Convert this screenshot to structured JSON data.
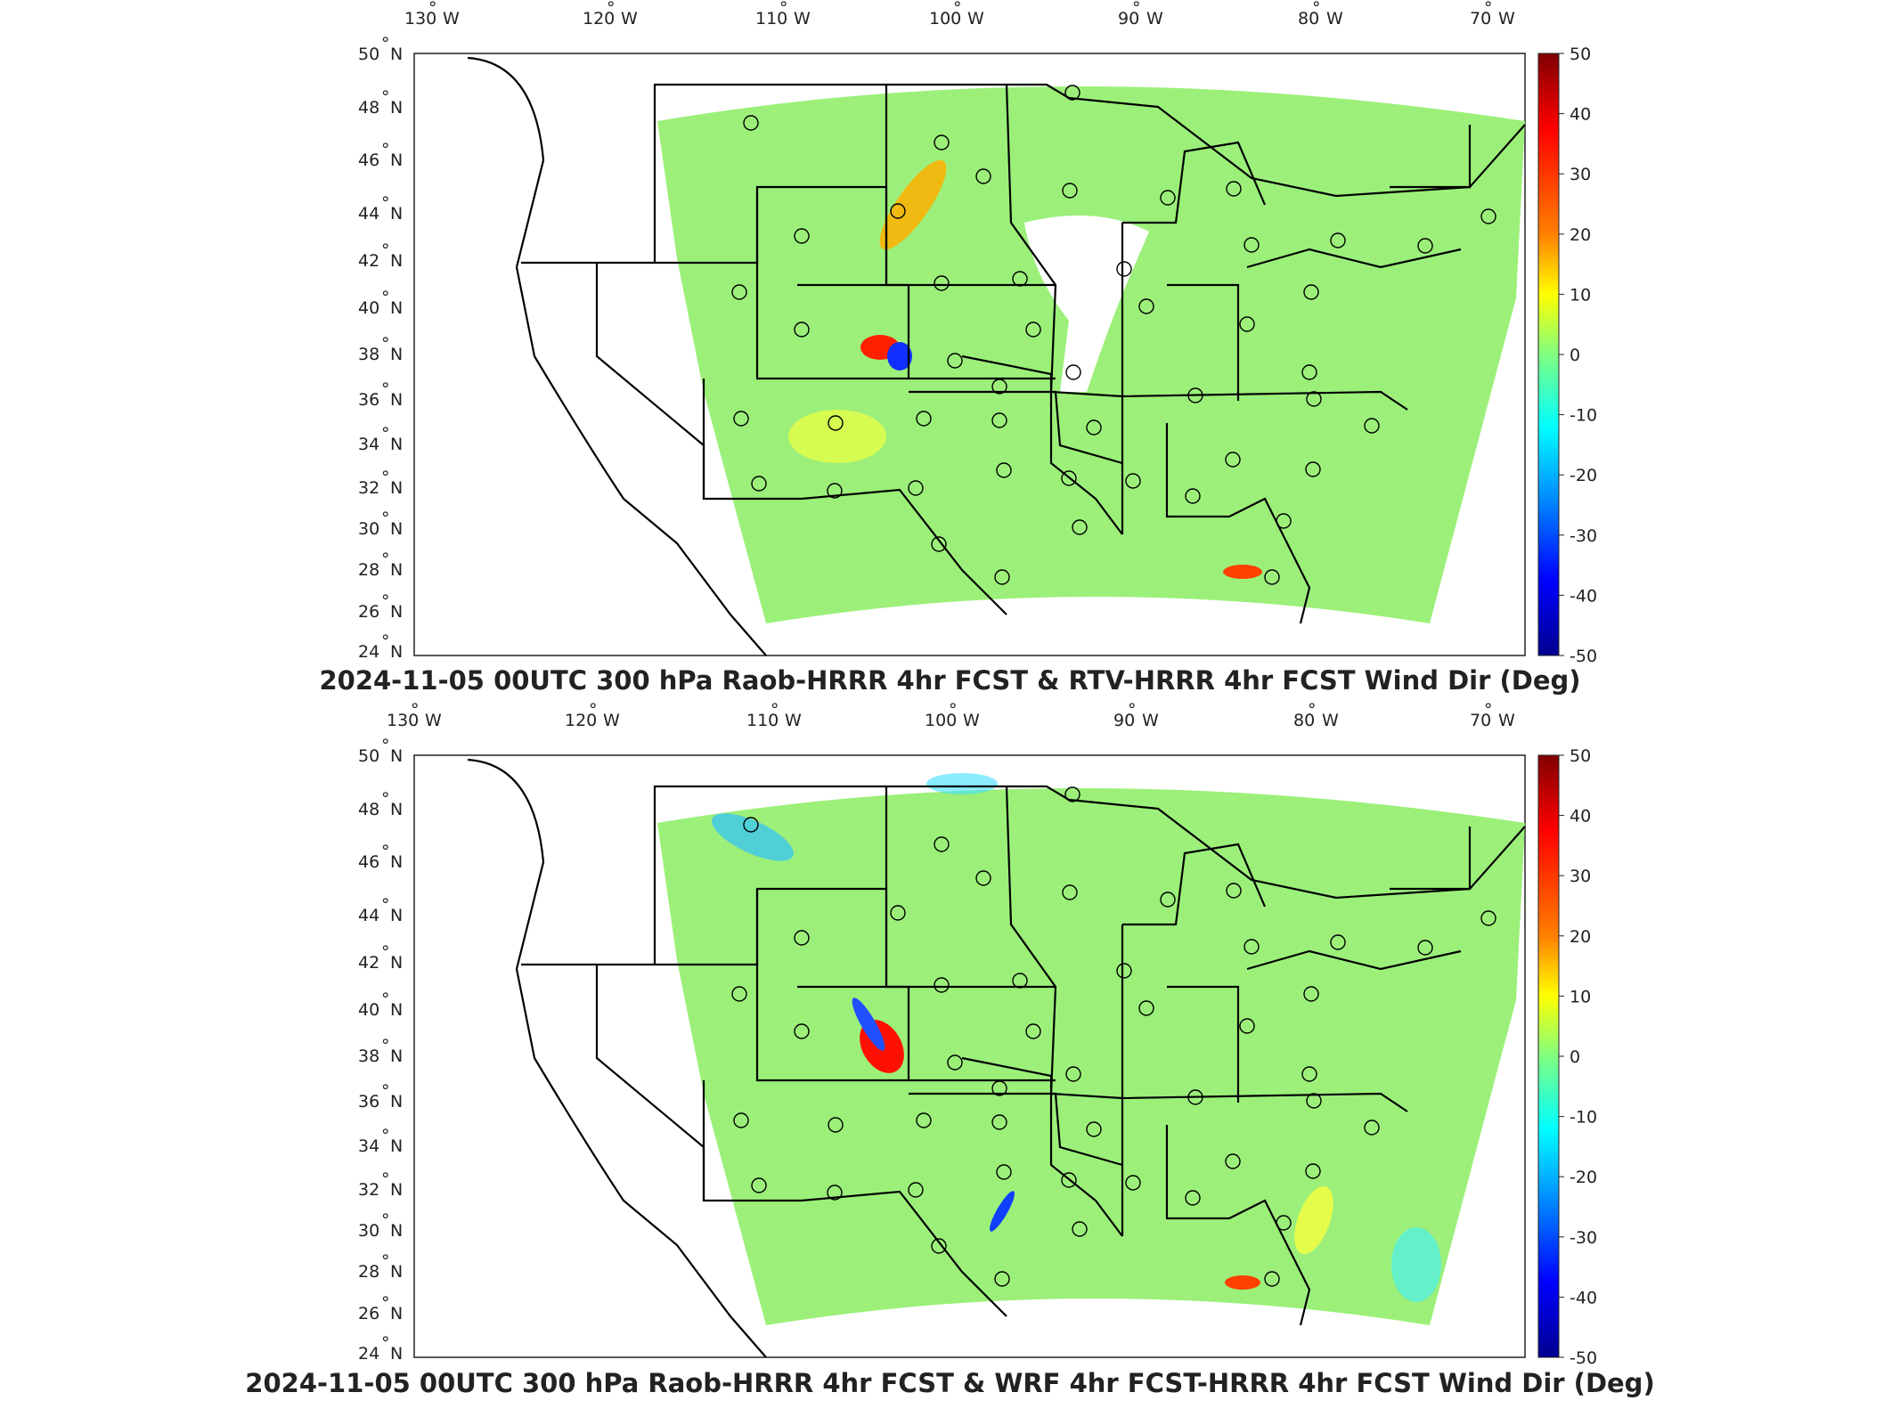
{
  "colorbar": {
    "ticks": [
      "50",
      "40",
      "30",
      "20",
      "10",
      "0",
      "-10",
      "-20",
      "-30",
      "-40",
      "-50"
    ],
    "min": -50,
    "max": 50,
    "colormap": "jet",
    "colors": [
      "#800000",
      "#ff0000",
      "#ff8000",
      "#ffff00",
      "#80ff80",
      "#00ffff",
      "#0080ff",
      "#0000ff",
      "#00008f"
    ]
  },
  "axes": {
    "lon_labels": [
      "130",
      "120",
      "110",
      "100",
      "90",
      "80",
      "70"
    ],
    "lon_suffix": "W",
    "lat_labels": [
      "50",
      "48",
      "46",
      "44",
      "42",
      "40",
      "38",
      "36",
      "34",
      "32",
      "30",
      "28",
      "26",
      "24"
    ],
    "lat_suffix": "N",
    "degree_symbol": "°"
  },
  "panels": [
    {
      "title": "2024-11-05 00UTC 300 hPa Raob-HRRR 4hr FCST & RTV-HRRR 4hr FCST Wind Dir (Deg)"
    },
    {
      "title": "2024-11-05 00UTC 300 hPa Raob-HRRR 4hr FCST & WRF 4hr FCST-HRRR 4hr FCST Wind Dir (Deg)"
    }
  ],
  "map_colors": {
    "background_field": "#9cf07a",
    "ocean": "#ffffff",
    "border": "#000000"
  }
}
